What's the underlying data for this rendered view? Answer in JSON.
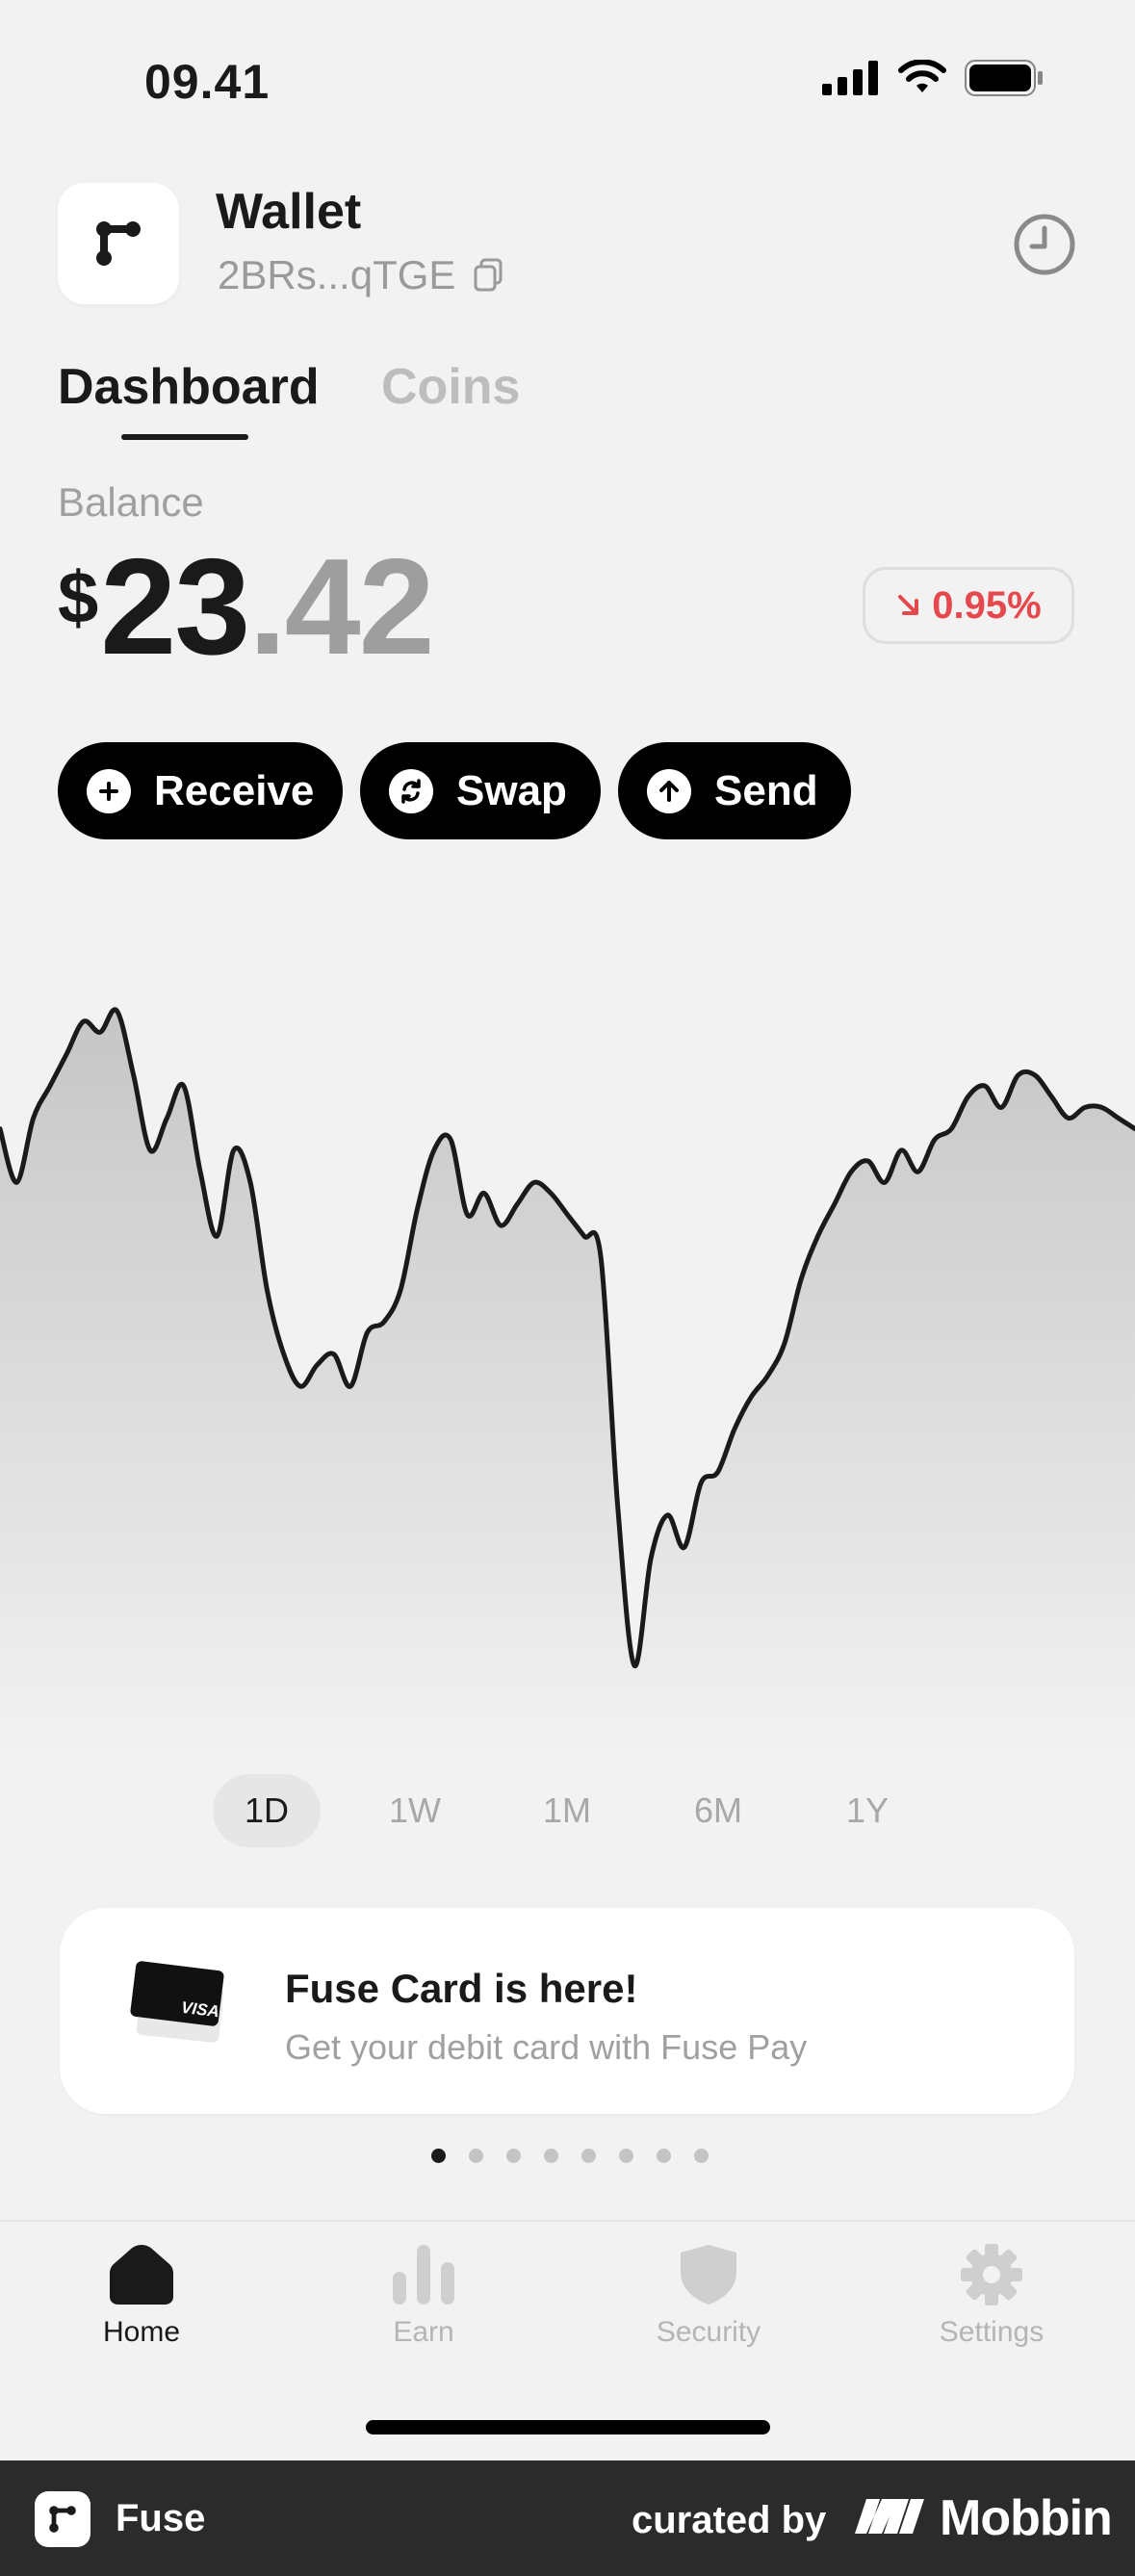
{
  "status_bar": {
    "time": "09.41"
  },
  "header": {
    "title": "Wallet",
    "address": "2BRs...qTGE"
  },
  "tabs": [
    {
      "label": "Dashboard",
      "active": true
    },
    {
      "label": "Coins",
      "active": false
    }
  ],
  "balance": {
    "label": "Balance",
    "currency": "$",
    "integer": "23",
    "decimal": ".42",
    "change": "0.95%",
    "change_color": "#e5484d"
  },
  "actions": [
    {
      "label": "Receive",
      "icon": "plus-icon"
    },
    {
      "label": "Swap",
      "icon": "swap-icon"
    },
    {
      "label": "Send",
      "icon": "arrow-up-icon"
    }
  ],
  "chart_data": {
    "type": "area",
    "x": [
      0,
      1,
      2,
      3,
      4,
      5,
      6,
      7,
      8,
      9,
      10,
      11,
      12,
      13,
      14,
      15,
      16,
      17,
      18,
      19,
      20,
      21,
      22,
      23,
      24,
      25,
      26,
      27,
      28,
      29,
      30,
      31,
      32,
      33,
      34,
      35,
      36,
      37,
      38,
      39,
      40,
      41,
      42,
      43,
      44,
      45,
      46,
      47,
      48,
      49,
      50,
      51,
      52,
      53,
      54,
      55,
      56,
      57,
      58,
      59,
      60,
      61,
      62,
      63,
      64,
      65,
      66,
      67,
      68
    ],
    "values": [
      60,
      50,
      62,
      68,
      74,
      80,
      78,
      82,
      70,
      56,
      62,
      68,
      52,
      40,
      56,
      50,
      30,
      18,
      12,
      16,
      18,
      12,
      22,
      24,
      30,
      45,
      56,
      58,
      44,
      48,
      42,
      46,
      50,
      48,
      44,
      40,
      36,
      -10,
      -40,
      -20,
      -12,
      -18,
      -6,
      -4,
      4,
      10,
      14,
      20,
      32,
      40,
      46,
      52,
      54,
      50,
      56,
      52,
      58,
      60,
      66,
      68,
      64,
      70,
      70,
      66,
      62,
      64,
      64,
      62,
      60
    ],
    "range_options": [
      "1D",
      "1W",
      "1M",
      "6M",
      "1Y"
    ],
    "selected_range": "1D",
    "line_color": "#1a1a1a"
  },
  "promo": {
    "title": "Fuse Card is here!",
    "subtitle": "Get your debit card with Fuse Pay",
    "card_brand": "VISA",
    "pages": 8,
    "current_page": 0
  },
  "nav": [
    {
      "label": "Home",
      "icon": "home-icon",
      "active": true
    },
    {
      "label": "Earn",
      "icon": "bar-chart-icon",
      "active": false
    },
    {
      "label": "Security",
      "icon": "shield-icon",
      "active": false
    },
    {
      "label": "Settings",
      "icon": "gear-icon",
      "active": false
    }
  ],
  "footer": {
    "app_name": "Fuse",
    "curated_by": "curated by",
    "brand": "Mobbin"
  }
}
